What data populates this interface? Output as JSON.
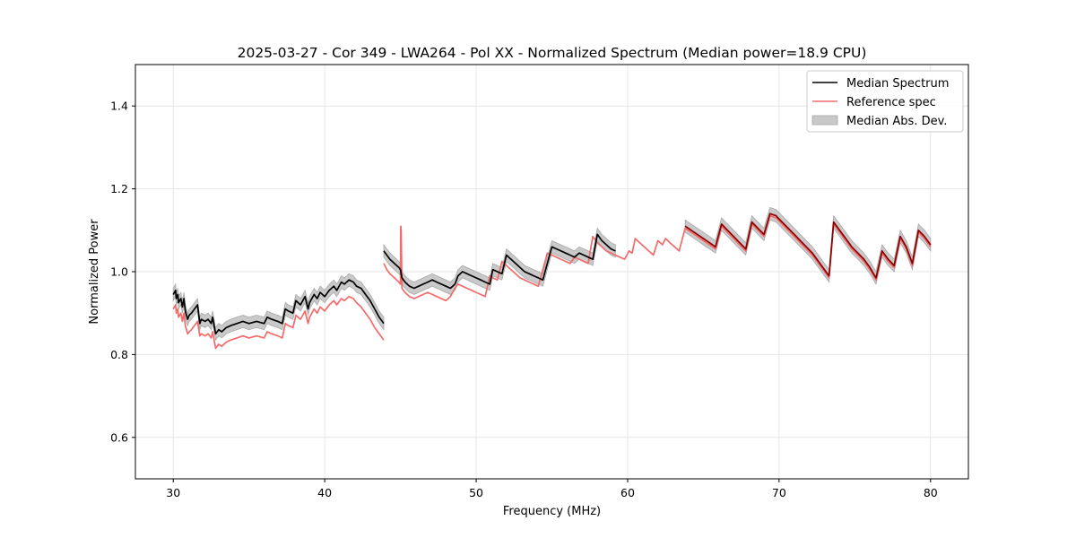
{
  "chart_data": {
    "type": "line",
    "title": "2025-03-27 - Cor 349 - LWA264 - Pol XX - Normalized Spectrum (Median power=18.9 CPU)",
    "xlabel": "Frequency (MHz)",
    "ylabel": "Normalized Power",
    "xlim": [
      27.5,
      82.5
    ],
    "ylim": [
      0.5,
      1.5
    ],
    "xticks": [
      30,
      40,
      50,
      60,
      70,
      80
    ],
    "yticks": [
      0.6,
      0.8,
      1.0,
      1.2,
      1.4
    ],
    "xtick_labels": [
      "30",
      "40",
      "50",
      "60",
      "70",
      "80"
    ],
    "ytick_labels": [
      "0.6",
      "0.8",
      "1.0",
      "1.2",
      "1.4"
    ],
    "grid": true,
    "legend_position": "top-right",
    "legend": [
      "Median Spectrum",
      "Reference spec",
      "Median Abs. Dev."
    ],
    "colors": {
      "median": "#000000",
      "reference": "#f26b6b",
      "mad_fill": "#c9c9c9",
      "mad_edge": "#a8a8a8",
      "overlap": "#8b0000",
      "grid": "#e6e6e6"
    },
    "series": [
      {
        "name": "Median Spectrum",
        "segments": [
          {
            "x": [
              30.0,
              30.15,
              30.2,
              30.3,
              30.35,
              30.5,
              30.6,
              30.7,
              30.8,
              30.95,
              31.05,
              31.2,
              31.4,
              31.6,
              31.75,
              31.85,
              32.1,
              32.3,
              32.5,
              32.6,
              32.8,
              33.0,
              33.2,
              33.5,
              33.8,
              34.2,
              34.6,
              35.0,
              35.5,
              36.0,
              36.2,
              36.5,
              36.9,
              37.2,
              37.4,
              37.6,
              37.9,
              38.1,
              38.4,
              38.7,
              38.9,
              39.0,
              39.3,
              39.5,
              39.7,
              40.0,
              40.3,
              40.6,
              40.8,
              41.1,
              41.3,
              41.6,
              41.9,
              42.1,
              42.4,
              42.7,
              43.0,
              43.3,
              43.6,
              43.9
            ],
            "y": [
              0.945,
              0.955,
              0.935,
              0.945,
              0.925,
              0.935,
              0.915,
              0.935,
              0.905,
              0.885,
              0.895,
              0.9,
              0.91,
              0.92,
              0.875,
              0.885,
              0.88,
              0.885,
              0.875,
              0.89,
              0.85,
              0.86,
              0.855,
              0.865,
              0.87,
              0.875,
              0.88,
              0.875,
              0.88,
              0.875,
              0.89,
              0.885,
              0.88,
              0.875,
              0.91,
              0.905,
              0.9,
              0.93,
              0.92,
              0.94,
              0.91,
              0.925,
              0.945,
              0.935,
              0.95,
              0.94,
              0.955,
              0.965,
              0.955,
              0.975,
              0.97,
              0.98,
              0.975,
              0.965,
              0.96,
              0.945,
              0.93,
              0.91,
              0.89,
              0.875
            ]
          },
          {
            "x": [
              43.9,
              44.1,
              44.3,
              44.6,
              44.9,
              45.0,
              45.05,
              45.1,
              45.3,
              45.6,
              45.9,
              46.2,
              46.5,
              46.8,
              47.1,
              47.4,
              47.7,
              48.0,
              48.3,
              48.6,
              48.8,
              49.1,
              49.4,
              49.7,
              50.0,
              50.3,
              50.6,
              50.9,
              51.1,
              51.4,
              51.7,
              52.0,
              52.3,
              52.6,
              52.9,
              53.2,
              53.5,
              53.8,
              54.1,
              54.4,
              54.7,
              55.0,
              55.3,
              55.6,
              55.9,
              56.2,
              56.5,
              56.8,
              57.1,
              57.4,
              57.7,
              58.0,
              58.3,
              58.6,
              58.9,
              59.2
            ],
            "y": [
              1.05,
              1.04,
              1.03,
              1.02,
              1.01,
              1.005,
              0.995,
              0.985,
              0.975,
              0.965,
              0.96,
              0.965,
              0.97,
              0.975,
              0.98,
              0.975,
              0.97,
              0.965,
              0.96,
              0.97,
              0.99,
              1.0,
              0.995,
              0.99,
              0.985,
              0.98,
              0.975,
              0.97,
              1.005,
              1.0,
              0.995,
              1.04,
              1.03,
              1.02,
              1.01,
              1.0,
              0.995,
              0.99,
              0.985,
              0.98,
              1.02,
              1.06,
              1.055,
              1.05,
              1.045,
              1.04,
              1.035,
              1.045,
              1.04,
              1.035,
              1.03,
              1.09,
              1.075,
              1.065,
              1.055,
              1.05
            ]
          },
          {
            "x": [
              63.8,
              64.2,
              64.6,
              65.0,
              65.4,
              65.8,
              66.2,
              66.6,
              67.0,
              67.4,
              67.8,
              68.2,
              68.6,
              69.0,
              69.4,
              69.8,
              70.2,
              70.6,
              71.0,
              71.4,
              71.8,
              72.2,
              72.6,
              73.0,
              73.3,
              73.6,
              74.0,
              74.4,
              74.8,
              75.2,
              75.6,
              76.0,
              76.4,
              76.8,
              77.2,
              77.6,
              78.0,
              78.4,
              78.8,
              79.2,
              79.6,
              80.0
            ],
            "y": [
              1.11,
              1.1,
              1.09,
              1.08,
              1.07,
              1.06,
              1.115,
              1.1,
              1.085,
              1.07,
              1.055,
              1.12,
              1.105,
              1.09,
              1.14,
              1.135,
              1.12,
              1.105,
              1.09,
              1.075,
              1.06,
              1.045,
              1.025,
              1.005,
              0.99,
              1.12,
              1.1,
              1.08,
              1.06,
              1.045,
              1.03,
              1.01,
              0.985,
              1.05,
              1.03,
              1.015,
              1.085,
              1.06,
              1.02,
              1.1,
              1.085,
              1.065
            ]
          }
        ]
      },
      {
        "name": "Reference spec",
        "segments": [
          {
            "x": [
              30.0,
              30.15,
              30.2,
              30.3,
              30.35,
              30.5,
              30.6,
              30.7,
              30.8,
              30.95,
              31.05,
              31.2,
              31.4,
              31.6,
              31.75,
              31.85,
              32.1,
              32.3,
              32.5,
              32.6,
              32.8,
              33.0,
              33.2,
              33.5,
              33.8,
              34.2,
              34.6,
              35.0,
              35.5,
              36.0,
              36.2,
              36.5,
              36.9,
              37.2,
              37.4,
              37.6,
              37.9,
              38.1,
              38.4,
              38.7,
              38.9,
              39.0,
              39.3,
              39.5,
              39.7,
              40.0,
              40.3,
              40.6,
              40.8,
              41.1,
              41.3,
              41.6,
              41.9,
              42.1,
              42.4,
              42.7,
              43.0,
              43.3,
              43.6,
              43.9
            ],
            "y": [
              0.91,
              0.92,
              0.9,
              0.91,
              0.89,
              0.9,
              0.88,
              0.9,
              0.87,
              0.85,
              0.855,
              0.86,
              0.87,
              0.88,
              0.845,
              0.85,
              0.845,
              0.85,
              0.84,
              0.855,
              0.815,
              0.825,
              0.82,
              0.83,
              0.835,
              0.84,
              0.845,
              0.84,
              0.845,
              0.84,
              0.855,
              0.85,
              0.845,
              0.84,
              0.875,
              0.87,
              0.865,
              0.895,
              0.885,
              0.905,
              0.875,
              0.89,
              0.91,
              0.9,
              0.915,
              0.905,
              0.92,
              0.93,
              0.92,
              0.935,
              0.93,
              0.94,
              0.935,
              0.925,
              0.915,
              0.9,
              0.885,
              0.865,
              0.85,
              0.835
            ]
          },
          {
            "x": [
              43.9,
              44.1,
              44.3,
              44.6,
              44.9,
              45.0,
              45.02,
              45.05,
              45.1,
              45.3,
              45.6,
              45.9,
              46.2,
              46.5,
              46.8,
              47.1,
              47.4,
              47.7,
              48.0,
              48.3,
              48.6,
              48.8,
              49.1,
              49.4,
              49.7,
              50.0,
              50.3,
              50.6,
              50.9,
              51.1,
              51.4,
              51.7,
              52.0,
              52.3,
              52.6,
              52.9,
              53.2,
              53.5,
              53.8,
              54.1,
              54.4,
              54.7,
              55.0,
              55.3,
              55.6,
              55.9,
              56.2,
              56.5,
              56.8,
              57.1,
              57.4,
              57.7,
              58.0,
              58.3,
              58.6,
              58.9,
              59.2,
              59.5,
              59.8,
              60.1,
              60.3,
              60.5,
              60.8,
              61.1,
              61.4,
              61.7,
              62.0,
              62.3,
              62.5,
              62.8,
              63.1,
              63.4,
              63.8,
              64.2,
              64.6,
              65.0,
              65.4,
              65.8,
              66.2,
              66.6,
              67.0,
              67.4,
              67.8,
              68.2,
              68.6,
              69.0,
              69.4,
              69.8,
              70.2,
              70.6,
              71.0,
              71.4,
              71.8,
              72.2,
              72.6,
              73.0,
              73.3,
              73.6,
              74.0,
              74.4,
              74.8,
              75.2,
              75.6,
              76.0,
              76.4,
              76.8,
              77.2,
              77.6,
              78.0,
              78.4,
              78.8,
              79.2,
              79.6,
              80.0
            ],
            "y": [
              1.02,
              1.005,
              0.995,
              0.985,
              0.975,
              0.97,
              1.11,
              1.1,
              0.96,
              0.95,
              0.94,
              0.935,
              0.94,
              0.945,
              0.95,
              0.945,
              0.94,
              0.935,
              0.93,
              0.94,
              0.96,
              0.97,
              0.965,
              0.96,
              0.955,
              0.95,
              0.945,
              0.94,
              0.99,
              0.985,
              0.98,
              1.025,
              1.015,
              1.005,
              0.995,
              0.985,
              0.98,
              0.975,
              0.97,
              0.965,
              1.005,
              1.045,
              1.04,
              1.035,
              1.03,
              1.025,
              1.02,
              1.035,
              1.03,
              1.025,
              1.02,
              1.085,
              1.07,
              1.06,
              1.05,
              1.045,
              1.04,
              1.035,
              1.03,
              1.05,
              1.045,
              1.08,
              1.07,
              1.06,
              1.05,
              1.04,
              1.075,
              1.065,
              1.08,
              1.07,
              1.06,
              1.05,
              1.105,
              1.095,
              1.085,
              1.075,
              1.065,
              1.055,
              1.11,
              1.095,
              1.08,
              1.065,
              1.05,
              1.115,
              1.1,
              1.085,
              1.135,
              1.13,
              1.115,
              1.1,
              1.085,
              1.07,
              1.055,
              1.04,
              1.02,
              1.0,
              0.985,
              1.115,
              1.095,
              1.075,
              1.055,
              1.04,
              1.025,
              1.005,
              0.98,
              1.045,
              1.025,
              1.01,
              1.08,
              1.055,
              1.015,
              1.095,
              1.08,
              1.06
            ]
          }
        ]
      },
      {
        "name": "Median Abs. Dev.",
        "kind": "band",
        "halfwidth": 0.015,
        "applies_to": "Median Spectrum"
      }
    ]
  }
}
